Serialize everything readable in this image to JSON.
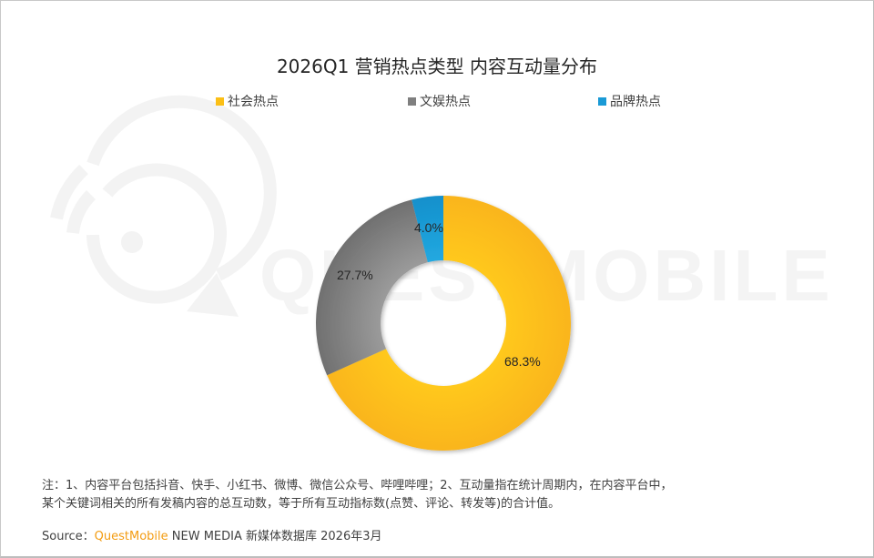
{
  "title": "2026Q1 营销热点类型 内容互动量分布",
  "legend": [
    {
      "label": "社会热点",
      "color": "#fbbf16"
    },
    {
      "label": "文娱热点",
      "color": "#7f7f7f"
    },
    {
      "label": "品牌热点",
      "color": "#1a9ad6"
    }
  ],
  "chart_data": {
    "type": "pie",
    "variant": "donut",
    "title": "2026Q1 营销热点类型 内容互动量分布",
    "categories": [
      "社会热点",
      "文娱热点",
      "品牌热点"
    ],
    "values": [
      68.3,
      27.7,
      4.0
    ],
    "labels": [
      "68.3%",
      "27.7%",
      "4.0%"
    ],
    "colors": [
      "#fbbf16",
      "#7f7f7f",
      "#1a9ad6"
    ],
    "legend_position": "top",
    "start_angle": "12 o'clock",
    "direction": "clockwise"
  },
  "watermark": {
    "text": "QUESTMOBILE"
  },
  "note": {
    "line1": "注：1、内容平台包括抖音、快手、小红书、微博、微信公众号、哔哩哔哩；2、互动量指在统计周期内，在内容平台中，",
    "line2": "某个关键词相关的所有发稿内容的总互动数，等于所有互动指标数(点赞、评论、转发等)的合计值。"
  },
  "source": {
    "prefix": "Source：",
    "brand": "QuestMobile",
    "suffix": " NEW MEDIA 新媒体数据库 2026年3月"
  }
}
